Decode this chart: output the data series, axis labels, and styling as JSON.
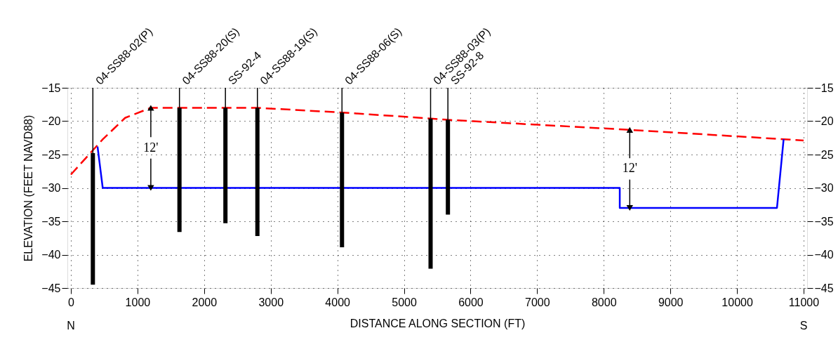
{
  "chart_data": {
    "type": "line",
    "xlabel": "DISTANCE ALONG SECTION (FT)",
    "ylabel": "ELEVATION (FEET NAVD88)",
    "xlim": [
      0,
      11000
    ],
    "xticks": [
      0,
      1000,
      2000,
      3000,
      4000,
      5000,
      6000,
      7000,
      8000,
      9000,
      10000,
      11000
    ],
    "ylim": [
      -45,
      -15
    ],
    "yticks": [
      -45,
      -40,
      -35,
      -30,
      -25,
      -20,
      -15
    ],
    "y2lim": [
      -45,
      -15
    ],
    "y2ticks": [
      -45,
      -40,
      -35,
      -30,
      -25,
      -20,
      -15
    ],
    "grid": true,
    "marker": "none",
    "series": [
      {
        "color": "#ff0000",
        "line_style": "dashed",
        "x": [
          0,
          480,
          815,
          1200,
          2800,
          4070,
          5400,
          5660,
          6040,
          8390,
          10700,
          11000
        ],
        "values": [
          -28,
          -22.7,
          -19.5,
          -18,
          -18,
          -18.7,
          -19.6,
          -19.8,
          -20,
          -21.3,
          -22.7,
          -22.9
        ]
      },
      {
        "color": "#0000ff",
        "line_style": "solid",
        "x": [
          400,
          478,
          8240,
          8240,
          10600,
          10700
        ],
        "values": [
          -23.8,
          -30,
          -30,
          -33,
          -33,
          -22.7
        ]
      },
      {
        "type": "bar",
        "name": "04-SS88-02(P)",
        "color": "#000000",
        "x": [
          330
        ],
        "base": [
          -44.5
        ],
        "values": [
          19.7
        ]
      },
      {
        "type": "bar",
        "name": "04-SS88-20(S)",
        "color": "#000000",
        "x": [
          1630
        ],
        "base": [
          -36.6
        ],
        "values": [
          18.6
        ]
      },
      {
        "type": "bar",
        "name": "SS-92-4",
        "color": "#000000",
        "x": [
          2320
        ],
        "base": [
          -35.3
        ],
        "values": [
          17.3
        ]
      },
      {
        "type": "bar",
        "name": "04-SS88-19(S)",
        "color": "#000000",
        "x": [
          2800
        ],
        "base": [
          -37.2
        ],
        "values": [
          19.2
        ]
      },
      {
        "type": "bar",
        "name": "04-SS88-06(S)",
        "color": "#000000",
        "x": [
          4070
        ],
        "base": [
          -38.9
        ],
        "values": [
          20.2
        ]
      },
      {
        "type": "bar",
        "name": "04-SS88-03(P)",
        "color": "#000000",
        "x": [
          5400
        ],
        "base": [
          -42.1
        ],
        "values": [
          22.5
        ]
      },
      {
        "type": "bar",
        "name": "SS-92-8",
        "color": "#000000",
        "x": [
          5660
        ],
        "base": [
          -34
        ],
        "values": [
          14.2
        ]
      }
    ],
    "annotations": [
      {
        "text": "12'",
        "x": 1200,
        "y": -18
      },
      {
        "text": "12'",
        "x": 8390,
        "y": -21.3
      },
      "N",
      "S"
    ]
  }
}
